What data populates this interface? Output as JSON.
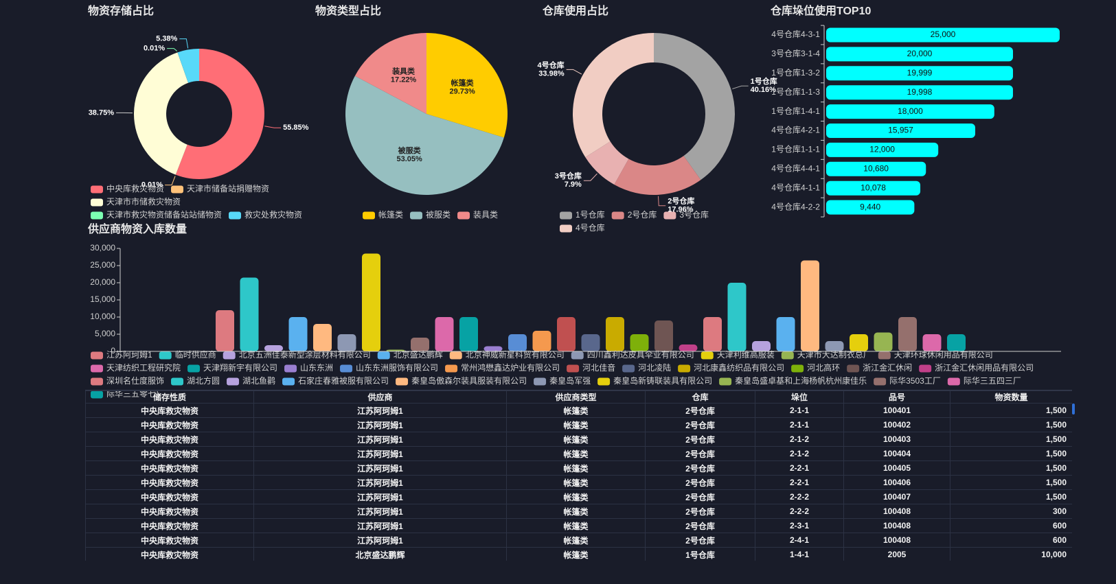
{
  "chart_data": [
    {
      "type": "donut",
      "title": "物资存储占比",
      "categories": [
        "中央库救灾物资",
        "天津市储备站捐赠物资",
        "天津市市储救灾物资",
        "天津市救灾物资储备站站储物资",
        "救灾处救灾物资"
      ],
      "values": [
        55.85,
        0.01,
        38.75,
        0.01,
        5.38
      ],
      "value_labels": [
        "55.85%",
        "0.01%",
        "38.75%",
        "0.01%",
        "5.38%"
      ],
      "colors": [
        "#ff6e76",
        "#ffc27a",
        "#fffdd6",
        "#7cffb2",
        "#58d9f9"
      ],
      "label_position": "outside",
      "label_name": false
    },
    {
      "type": "pie",
      "title": "物资类型占比",
      "categories": [
        "帐篷类",
        "被服类",
        "装具类"
      ],
      "values": [
        29.73,
        53.05,
        17.22
      ],
      "value_labels": [
        "29.73%",
        "53.05%",
        "17.22%"
      ],
      "colors": [
        "#ffcc00",
        "#96bfc0",
        "#f08a8a"
      ],
      "label_position": "inside",
      "label_name": true
    },
    {
      "type": "donut",
      "title": "仓库使用占比",
      "categories": [
        "1号仓库",
        "2号仓库",
        "3号仓库",
        "4号仓库"
      ],
      "values": [
        40.16,
        17.96,
        7.9,
        33.98
      ],
      "value_labels": [
        "40.16%",
        "17.96%",
        "7.9%",
        "33.98%"
      ],
      "colors": [
        "#a3a3a3",
        "#da8787",
        "#e8b1b1",
        "#f1cdc3"
      ],
      "label_position": "outside",
      "label_name": true
    },
    {
      "type": "hbar",
      "title": "仓库垛位使用TOP10",
      "categories": [
        "4号仓库4-3-1",
        "3号仓库3-1-4",
        "1号仓库1-3-2",
        "1号仓库1-1-3",
        "1号仓库1-4-1",
        "4号仓库4-2-1",
        "1号仓库1-1-1",
        "4号仓库4-4-1",
        "4号仓库4-1-1",
        "4号仓库4-2-2"
      ],
      "values": [
        25000,
        20000,
        19999,
        19998,
        18000,
        15957,
        12000,
        10680,
        10078,
        9440
      ],
      "value_labels": [
        "25,000",
        "20,000",
        "19,999",
        "19,998",
        "18,000",
        "15,957",
        "12,000",
        "10,680",
        "10,078",
        "9,440"
      ],
      "color": "#00ffff",
      "xlim": [
        0,
        25000
      ]
    },
    {
      "type": "bar",
      "title": "供应商物资入库数量",
      "categories": [
        "江苏阿珂姆1",
        "临时供应商",
        "北京五洲佳泰新型涂层材料有限公司",
        "北京盛达鹏辉",
        "北京神威新星科贸有限公司",
        "四川鑫利达皮具伞业有限公司",
        "天津利维高服装",
        "天津市大达制衣总厂",
        "天津环球休闲用品有限公司",
        "天津纺织工程研究院",
        "天津翔新宇有限公司",
        "山东东洲",
        "山东东洲服饰有限公司",
        "常州鸿懋鑫达炉业有限公司",
        "河北佳音",
        "河北凌陆",
        "河北康鑫纺织品有限公司",
        "河北高环",
        "浙江金汇休闲",
        "浙江金汇休闲用品有限公司",
        "深圳名仕度服饰",
        "湖北方圆",
        "湖北鱼鹳",
        "石家庄春雅被服有限公司",
        "秦皇岛傲森尔装具服装有限公司",
        "秦皇岛军强",
        "秦皇岛新铸联装具有限公司",
        "秦皇岛盛卓基和上海杨帆杭州康佳乐",
        "际华3503工厂",
        "际华三五四三厂",
        "际华三五零七厂"
      ],
      "values": [
        12000,
        21500,
        1800,
        10000,
        8000,
        5000,
        28500,
        500,
        4000,
        10000,
        10000,
        1500,
        5000,
        6000,
        10000,
        5000,
        10000,
        5000,
        9000,
        2000,
        10000,
        20000,
        3000,
        10000,
        26500,
        3000,
        5000,
        5500,
        10000,
        5000,
        5000
      ],
      "colors": [
        "#dd7a80",
        "#2ec7c9",
        "#b6a2de",
        "#5ab1ef",
        "#ffb980",
        "#8d98b3",
        "#e5cf0d",
        "#97b552",
        "#95706d",
        "#dc69aa",
        "#07a2a4",
        "#9a7fd1",
        "#588dd5",
        "#f5994e",
        "#c05050",
        "#59678c",
        "#c9ab00",
        "#7eb00a",
        "#6f5553",
        "#c14089",
        "#dd7a80",
        "#2ec7c9",
        "#b6a2de",
        "#5ab1ef",
        "#ffb980",
        "#8d98b3",
        "#e5cf0d",
        "#97b552",
        "#95706d",
        "#dc69aa",
        "#07a2a4"
      ],
      "ylim": [
        0,
        30000
      ],
      "yticks": [
        0,
        {
          "value": 5000,
          "label": "5,000"
        },
        {
          "value": 10000,
          "label": "10,000"
        },
        {
          "value": 15000,
          "label": "15,000"
        },
        {
          "value": 20000,
          "label": "20,000"
        },
        {
          "value": 25000,
          "label": "25,000"
        },
        {
          "value": 30000,
          "label": "30,000"
        }
      ]
    }
  ],
  "table": {
    "header": [
      "储存性质",
      "供应商",
      "供应商类型",
      "仓库",
      "垛位",
      "品号",
      "物资数量"
    ],
    "rows": [
      [
        "中央库救灾物资",
        "江苏阿珂姆1",
        "帐篷类",
        "2号仓库",
        "2-1-1",
        "100401",
        "1,500"
      ],
      [
        "中央库救灾物资",
        "江苏阿珂姆1",
        "帐篷类",
        "2号仓库",
        "2-1-1",
        "100402",
        "1,500"
      ],
      [
        "中央库救灾物资",
        "江苏阿珂姆1",
        "帐篷类",
        "2号仓库",
        "2-1-2",
        "100403",
        "1,500"
      ],
      [
        "中央库救灾物资",
        "江苏阿珂姆1",
        "帐篷类",
        "2号仓库",
        "2-1-2",
        "100404",
        "1,500"
      ],
      [
        "中央库救灾物资",
        "江苏阿珂姆1",
        "帐篷类",
        "2号仓库",
        "2-2-1",
        "100405",
        "1,500"
      ],
      [
        "中央库救灾物资",
        "江苏阿珂姆1",
        "帐篷类",
        "2号仓库",
        "2-2-1",
        "100406",
        "1,500"
      ],
      [
        "中央库救灾物资",
        "江苏阿珂姆1",
        "帐篷类",
        "2号仓库",
        "2-2-2",
        "100407",
        "1,500"
      ],
      [
        "中央库救灾物资",
        "江苏阿珂姆1",
        "帐篷类",
        "2号仓库",
        "2-2-2",
        "100408",
        "300"
      ],
      [
        "中央库救灾物资",
        "江苏阿珂姆1",
        "帐篷类",
        "2号仓库",
        "2-3-1",
        "100408",
        "600"
      ],
      [
        "中央库救灾物资",
        "江苏阿珂姆1",
        "帐篷类",
        "2号仓库",
        "2-4-1",
        "100408",
        "600"
      ],
      [
        "中央库救灾物资",
        "北京盛达鹏辉",
        "帐篷类",
        "1号仓库",
        "1-4-1",
        "2005",
        "10,000"
      ]
    ]
  }
}
